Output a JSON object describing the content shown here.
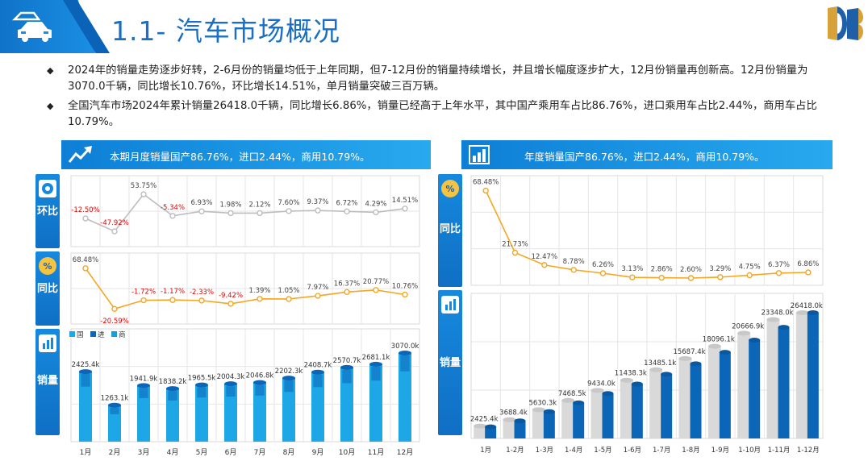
{
  "header": {
    "title": "1.1- 汽车市场概况"
  },
  "bullets": [
    "2024年的销量走势逐步好转，2-6月份的销量均低于上年同期，但7-12月份的销量持续增长，并且增长幅度逐步扩大，12月份销量再创新高。12月份销量为3070.0千辆，同比增长10.76%，环比增长14.51%，单月销量突破三百万辆。",
    "全国汽车市场2024年累计销量26418.0千辆，同比增长6.86%，销量已经高于上年水平，其中国产乘用车占比86.76%，进口乘用车占比2.44%，商用车占比10.79%。"
  ],
  "left_panel": {
    "banner": "本期月度销量国产86.76%，进口2.44%，商用10.79%。",
    "side_hb": "环比",
    "side_tb": "同比",
    "side_xl": "销量"
  },
  "right_panel": {
    "banner": "年度销量国产86.76%，进口2.44%，商用10.79%。",
    "side_tb": "同比",
    "side_xl": "销量"
  },
  "colors": {
    "brand_blue": "#1a6fc4",
    "line_gray": "#bdbdbd",
    "line_orange": "#f5a623",
    "negative_red": "#e00000",
    "bar_light": "#1ea7e6",
    "bar_dark": "#0b66b8",
    "bar_gray": "#d9d9d9"
  },
  "chart_data": [
    {
      "type": "line",
      "id": "monthly_mom",
      "categories": [
        "1月",
        "2月",
        "3月",
        "4月",
        "5月",
        "6月",
        "7月",
        "8月",
        "9月",
        "10月",
        "11月",
        "12月"
      ],
      "values": [
        -12.5,
        -47.92,
        53.75,
        -5.34,
        6.93,
        1.98,
        2.12,
        7.6,
        9.37,
        6.72,
        4.29,
        14.51
      ],
      "labels": [
        "-12.50%",
        "-47.92%",
        "53.75%",
        "-5.34%",
        "6.93%",
        "1.98%",
        "2.12%",
        "7.60%",
        "9.37%",
        "6.72%",
        "4.29%",
        "14.51%"
      ],
      "unit": "%"
    },
    {
      "type": "line",
      "id": "monthly_yoy",
      "categories": [
        "1月",
        "2月",
        "3月",
        "4月",
        "5月",
        "6月",
        "7月",
        "8月",
        "9月",
        "10月",
        "11月",
        "12月"
      ],
      "values": [
        68.48,
        -20.59,
        -1.72,
        -1.17,
        -2.33,
        -9.42,
        1.39,
        1.05,
        7.97,
        16.37,
        20.77,
        10.76
      ],
      "labels": [
        "68.48%",
        "-20.59%",
        "-1.72%",
        "-1.17%",
        "-2.33%",
        "-9.42%",
        "1.39%",
        "1.05%",
        "7.97%",
        "16.37%",
        "20.77%",
        "10.76%"
      ],
      "unit": "%"
    },
    {
      "type": "bar",
      "id": "monthly_sales",
      "categories": [
        "1月",
        "2月",
        "3月",
        "4月",
        "5月",
        "6月",
        "7月",
        "8月",
        "9月",
        "10月",
        "11月",
        "12月"
      ],
      "legend": [
        "国",
        "进",
        "商"
      ],
      "values": [
        2425.4,
        1263.1,
        1941.9,
        1838.2,
        1965.5,
        2004.3,
        2046.8,
        2202.3,
        2408.7,
        2570.7,
        2681.1,
        3070.0
      ],
      "labels": [
        "2425.4k",
        "1263.1k",
        "1941.9k",
        "1838.2k",
        "1965.5k",
        "2004.3k",
        "2046.8k",
        "2202.3k",
        "2408.7k",
        "2570.7k",
        "2681.1k",
        "3070.0k"
      ],
      "unit": "千辆"
    },
    {
      "type": "line",
      "id": "cumulative_yoy",
      "categories": [
        "1月",
        "1-2月",
        "1-3月",
        "1-4月",
        "1-5月",
        "1-6月",
        "1-7月",
        "1-8月",
        "1-9月",
        "1-10月",
        "1-11月",
        "1-12月"
      ],
      "values": [
        68.48,
        21.73,
        12.47,
        8.78,
        6.26,
        3.13,
        2.86,
        2.6,
        3.29,
        4.75,
        6.37,
        6.86
      ],
      "labels": [
        "68.48%",
        "21.73%",
        "12.47%",
        "8.78%",
        "6.26%",
        "3.13%",
        "2.86%",
        "2.60%",
        "3.29%",
        "4.75%",
        "6.37%",
        "6.86%"
      ],
      "unit": "%"
    },
    {
      "type": "bar",
      "id": "cumulative_sales",
      "categories": [
        "1月",
        "1-2月",
        "1-3月",
        "1-4月",
        "1-5月",
        "1-6月",
        "1-7月",
        "1-8月",
        "1-9月",
        "1-10月",
        "1-11月",
        "1-12月"
      ],
      "values": [
        2425.4,
        3688.4,
        5630.3,
        7468.5,
        9434.0,
        11438.3,
        13485.1,
        15687.4,
        18096.1,
        20666.9,
        23348.0,
        26418.0
      ],
      "labels": [
        "2425.4k",
        "3688.4k",
        "5630.3k",
        "7468.5k",
        "9434.0k",
        "11438.3k",
        "13485.1k",
        "15687.4k",
        "18096.1k",
        "20666.9k",
        "23348.0k",
        "26418.0k"
      ],
      "unit": "千辆"
    }
  ]
}
